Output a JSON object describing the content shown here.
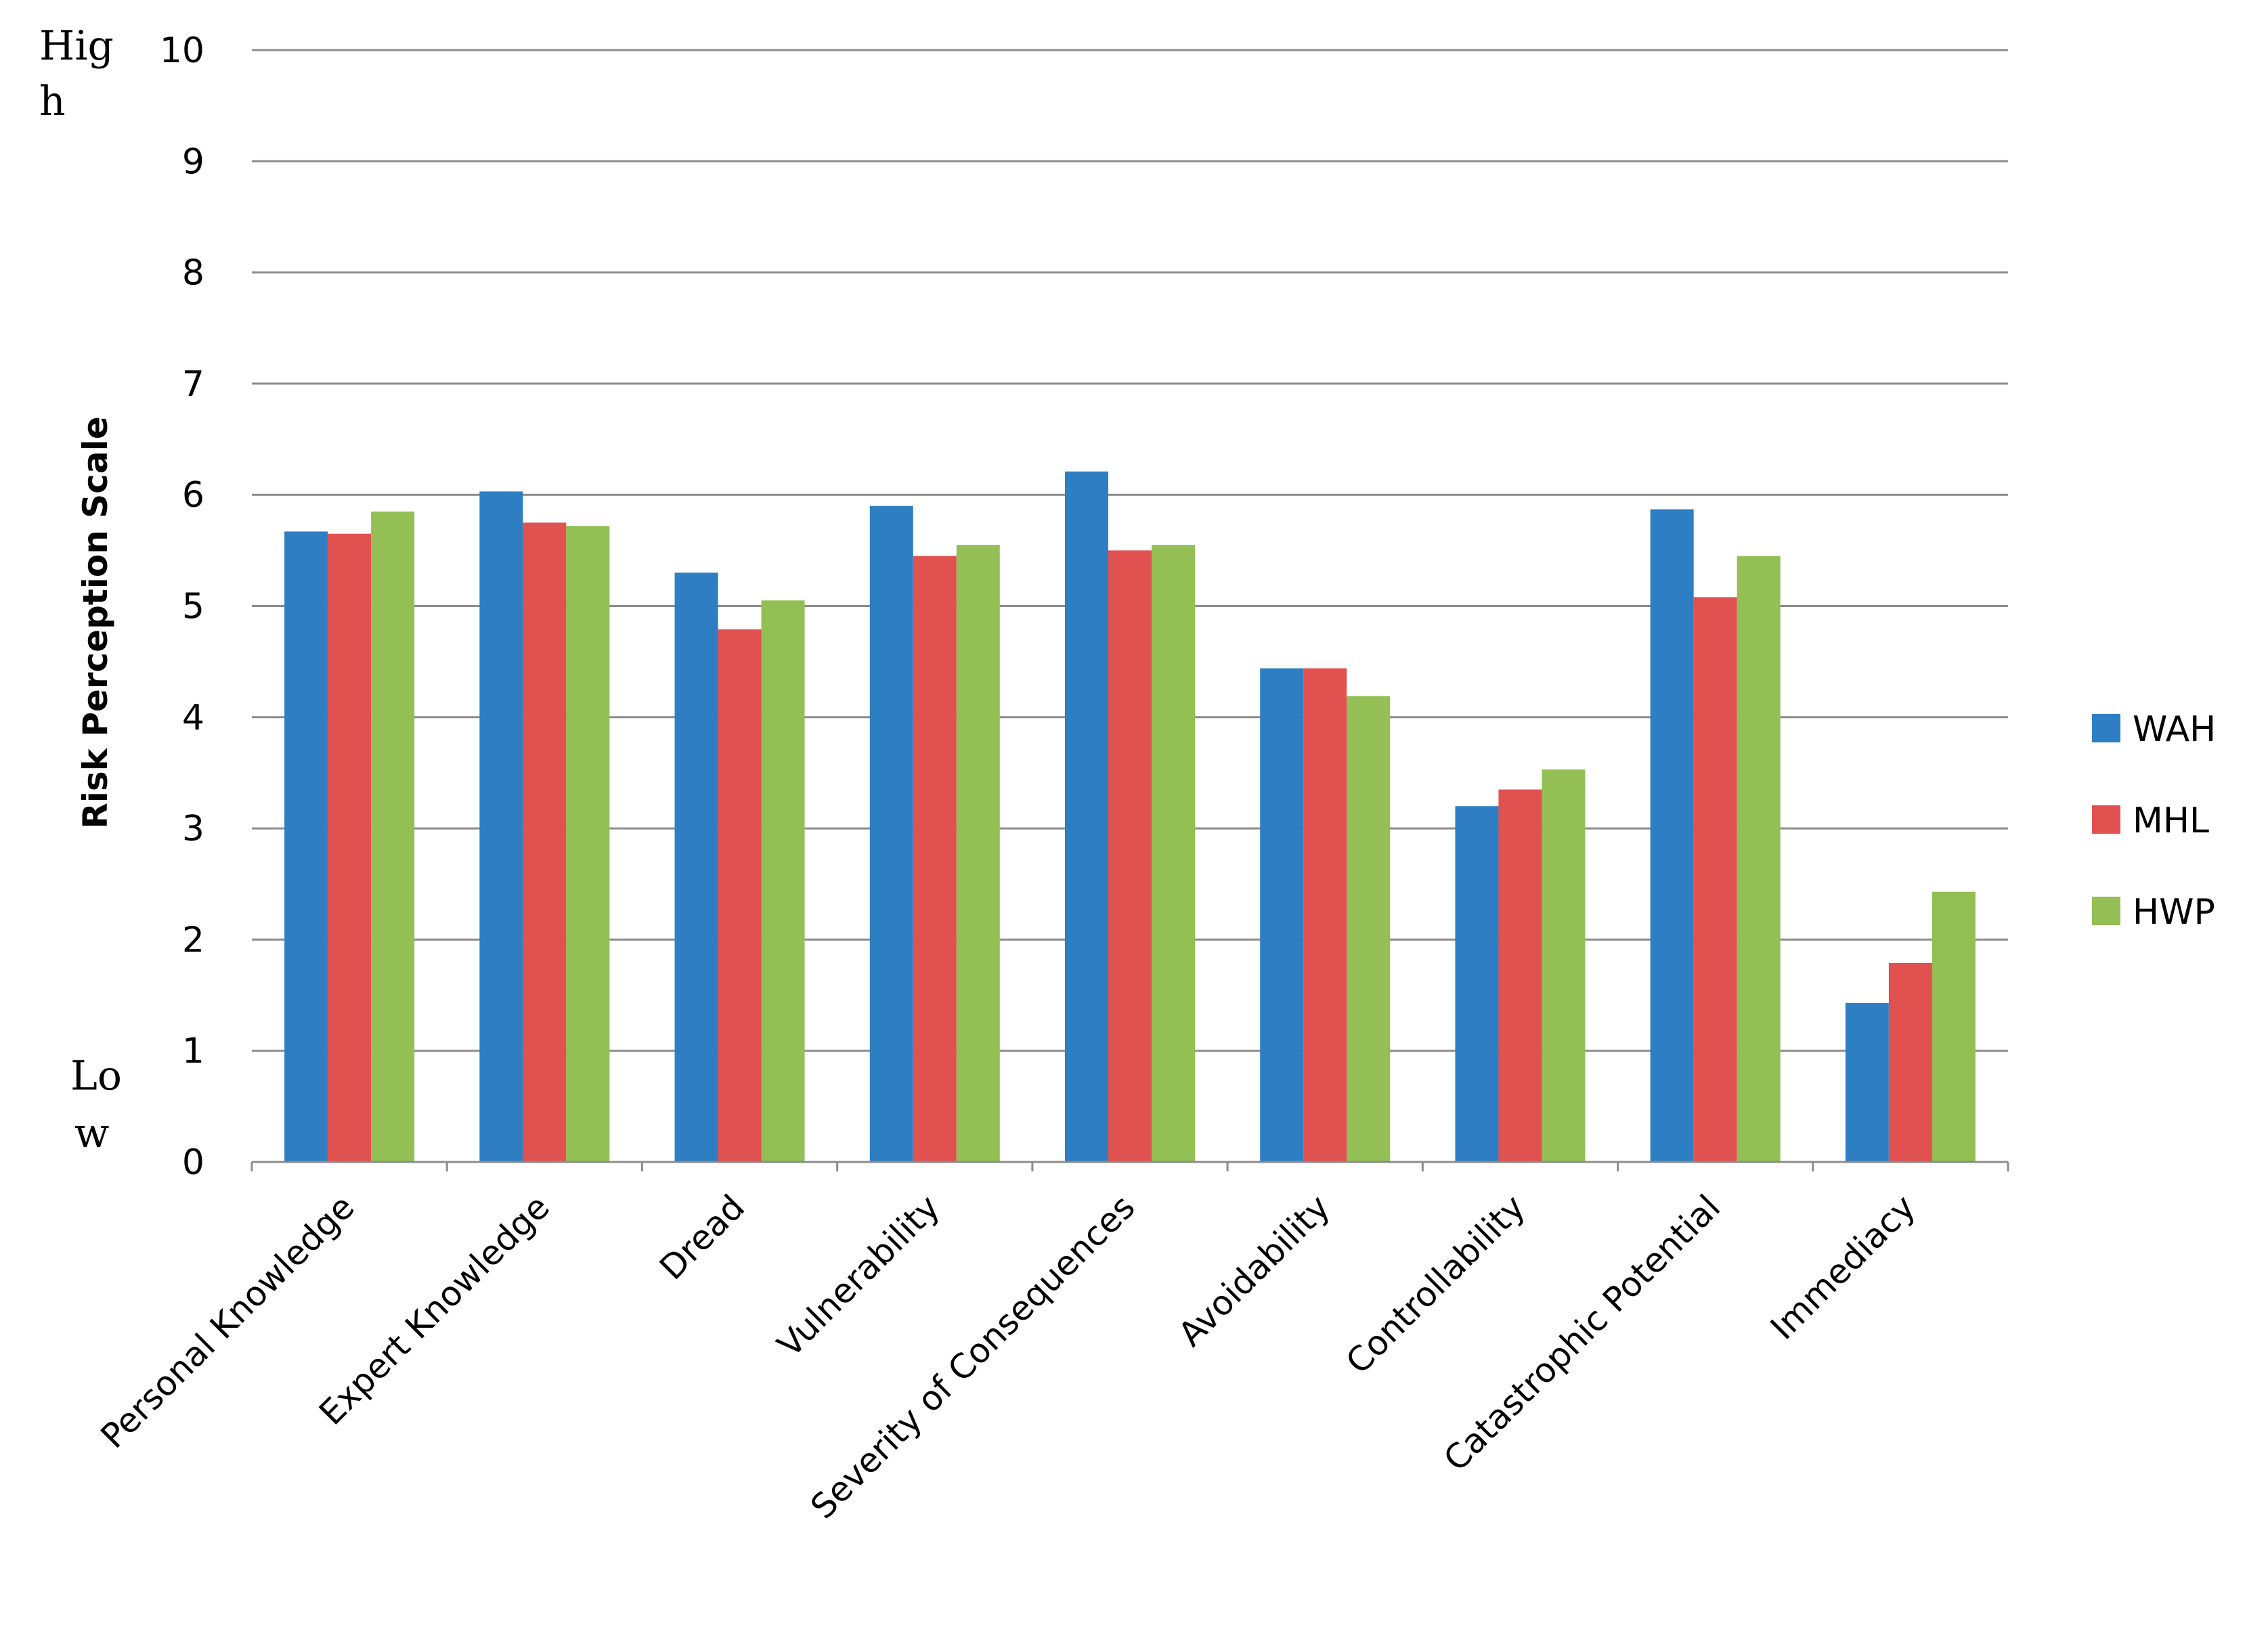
{
  "chart_data": {
    "type": "bar",
    "title": "",
    "xlabel": "",
    "ylabel": "Risk Perception Scale",
    "ylim": [
      0,
      10
    ],
    "yticks": [
      0,
      1,
      2,
      3,
      4,
      5,
      6,
      7,
      8,
      9,
      10
    ],
    "grid": true,
    "legend_position": "right",
    "scale_end_labels": {
      "high": [
        "Hig",
        "h"
      ],
      "low": [
        "Lo",
        "w"
      ]
    },
    "categories": [
      "Personal Knowledge",
      "Expert Knowledge",
      "Dread",
      "Vulnerability",
      "Severity of Consequences",
      "Avoidability",
      "Controllability",
      "Catastrophic Potential",
      "Immediacy"
    ],
    "series": [
      {
        "name": "WAH",
        "color": "#2e7ec4",
        "values": [
          5.67,
          6.03,
          5.3,
          5.9,
          6.21,
          4.44,
          3.2,
          5.87,
          1.43
        ]
      },
      {
        "name": "MHL",
        "color": "#e05150",
        "values": [
          5.65,
          5.75,
          4.79,
          5.45,
          5.5,
          4.44,
          3.35,
          5.08,
          1.79
        ]
      },
      {
        "name": "HWP",
        "color": "#93bf54",
        "values": [
          5.85,
          5.72,
          5.05,
          5.55,
          5.55,
          4.19,
          3.53,
          5.45,
          2.43
        ]
      }
    ]
  }
}
